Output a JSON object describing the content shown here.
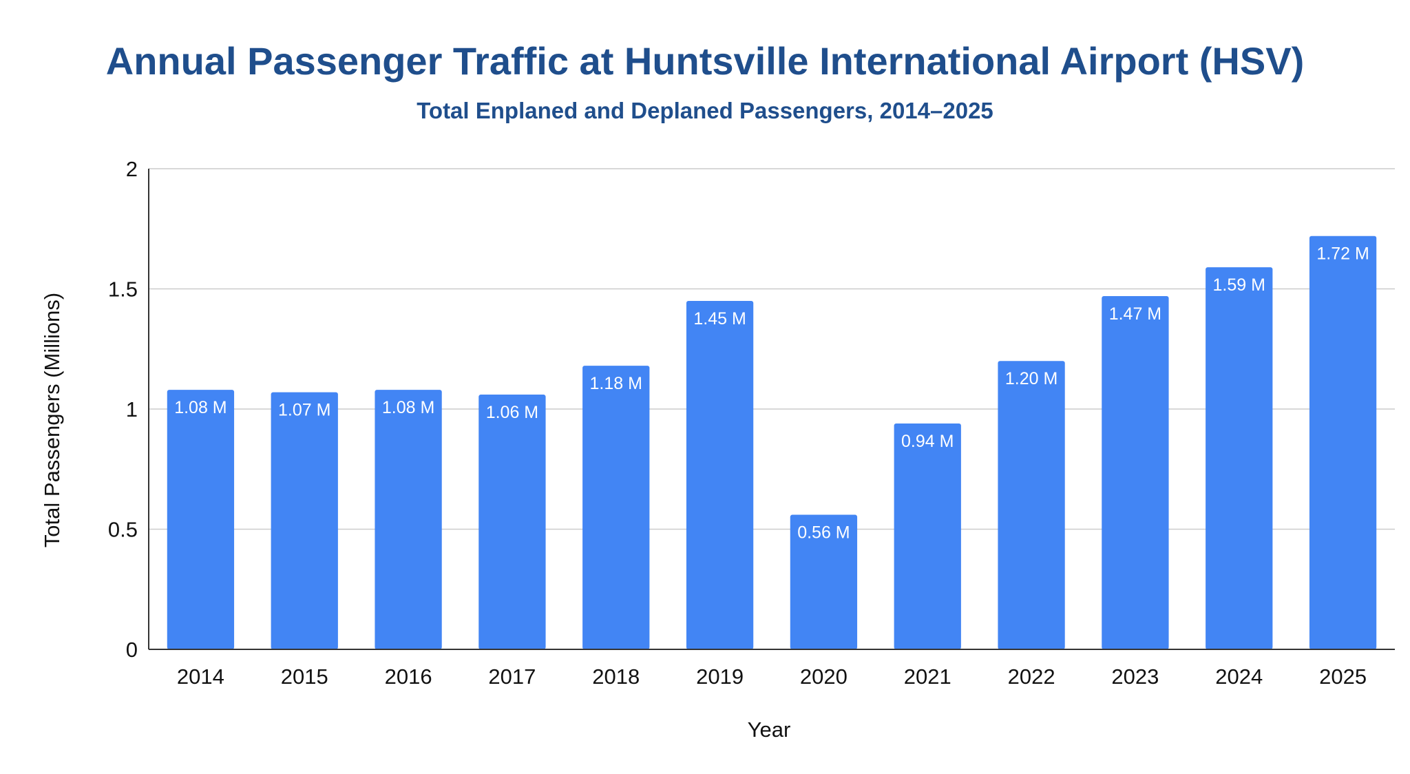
{
  "chart_data": {
    "type": "bar",
    "title": "Annual Passenger Traffic at Huntsville International Airport (HSV)",
    "subtitle": "Total Enplaned and Deplaned Passengers, 2014–2025",
    "xlabel": "Year",
    "ylabel": "Total Passengers (Millions)",
    "ylim": [
      0,
      2
    ],
    "yticks": [
      "0",
      "0.5",
      "1",
      "1.5",
      "2"
    ],
    "grid": true,
    "categories": [
      "2014",
      "2015",
      "2016",
      "2017",
      "2018",
      "2019",
      "2020",
      "2021",
      "2022",
      "2023",
      "2024",
      "2025"
    ],
    "values": [
      1.08,
      1.07,
      1.08,
      1.06,
      1.18,
      1.45,
      0.56,
      0.94,
      1.2,
      1.47,
      1.59,
      1.72
    ],
    "data_labels": [
      "1.08 M",
      "1.07 M",
      "1.08 M",
      "1.06 M",
      "1.18 M",
      "1.45 M",
      "0.56 M",
      "0.94 M",
      "1.20 M",
      "1.47 M",
      "1.59 M",
      "1.72 M"
    ],
    "bar_color": "#4285f4",
    "title_color": "#1f4e8c"
  }
}
